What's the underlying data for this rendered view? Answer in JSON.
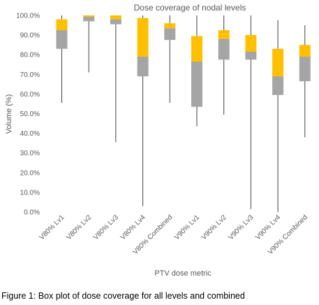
{
  "chart_data": {
    "type": "box",
    "title": "Dose coverage of nodal levels",
    "xlabel": "PTV dose metric",
    "ylabel": "Volume (%)",
    "ylim": [
      0,
      100
    ],
    "yticks": [
      "0.0%",
      "10.0%",
      "20.0%",
      "30.0%",
      "40.0%",
      "50.0%",
      "60.0%",
      "70.0%",
      "80.0%",
      "90.0%",
      "100.0%"
    ],
    "grid": false,
    "legend": "none",
    "categories": [
      "V80% Lv1",
      "V80% Lv2",
      "V80% Lv3",
      "V80% Lv4",
      "V80% Combined",
      "V90% Lv1",
      "V90% Lv2",
      "V90% Lv3",
      "V90% Lv4",
      "V90% Combined"
    ],
    "boxes": [
      {
        "min": 55.5,
        "q1": 83,
        "median": 92.5,
        "q3": 98,
        "max": 100
      },
      {
        "min": 71,
        "q1": 97,
        "median": 99.3,
        "q3": 100,
        "max": 100
      },
      {
        "min": 35.5,
        "q1": 95.5,
        "median": 98,
        "q3": 100,
        "max": 100
      },
      {
        "min": 3,
        "q1": 69,
        "median": 79,
        "q3": 98.7,
        "max": 100
      },
      {
        "min": 55.5,
        "q1": 87.5,
        "median": 93.5,
        "q3": 96,
        "max": 100
      },
      {
        "min": 43.5,
        "q1": 53.5,
        "median": 76.5,
        "q3": 89.5,
        "max": 100
      },
      {
        "min": 49.5,
        "q1": 77.5,
        "median": 88,
        "q3": 92.5,
        "max": 100
      },
      {
        "min": 1.5,
        "q1": 77.5,
        "median": 81.5,
        "q3": 90,
        "max": 100
      },
      {
        "min": 0,
        "q1": 59.5,
        "median": 69,
        "q3": 83,
        "max": 97.5
      },
      {
        "min": 38,
        "q1": 66.5,
        "median": 79,
        "q3": 85,
        "max": 95
      }
    ],
    "colors": {
      "lower_box": "#A5A5A5",
      "upper_box": "#FFC000",
      "whisker": "#404040",
      "text": "#595959"
    }
  },
  "caption": "Figure 1: Box plot of dose coverage for all levels and combined"
}
